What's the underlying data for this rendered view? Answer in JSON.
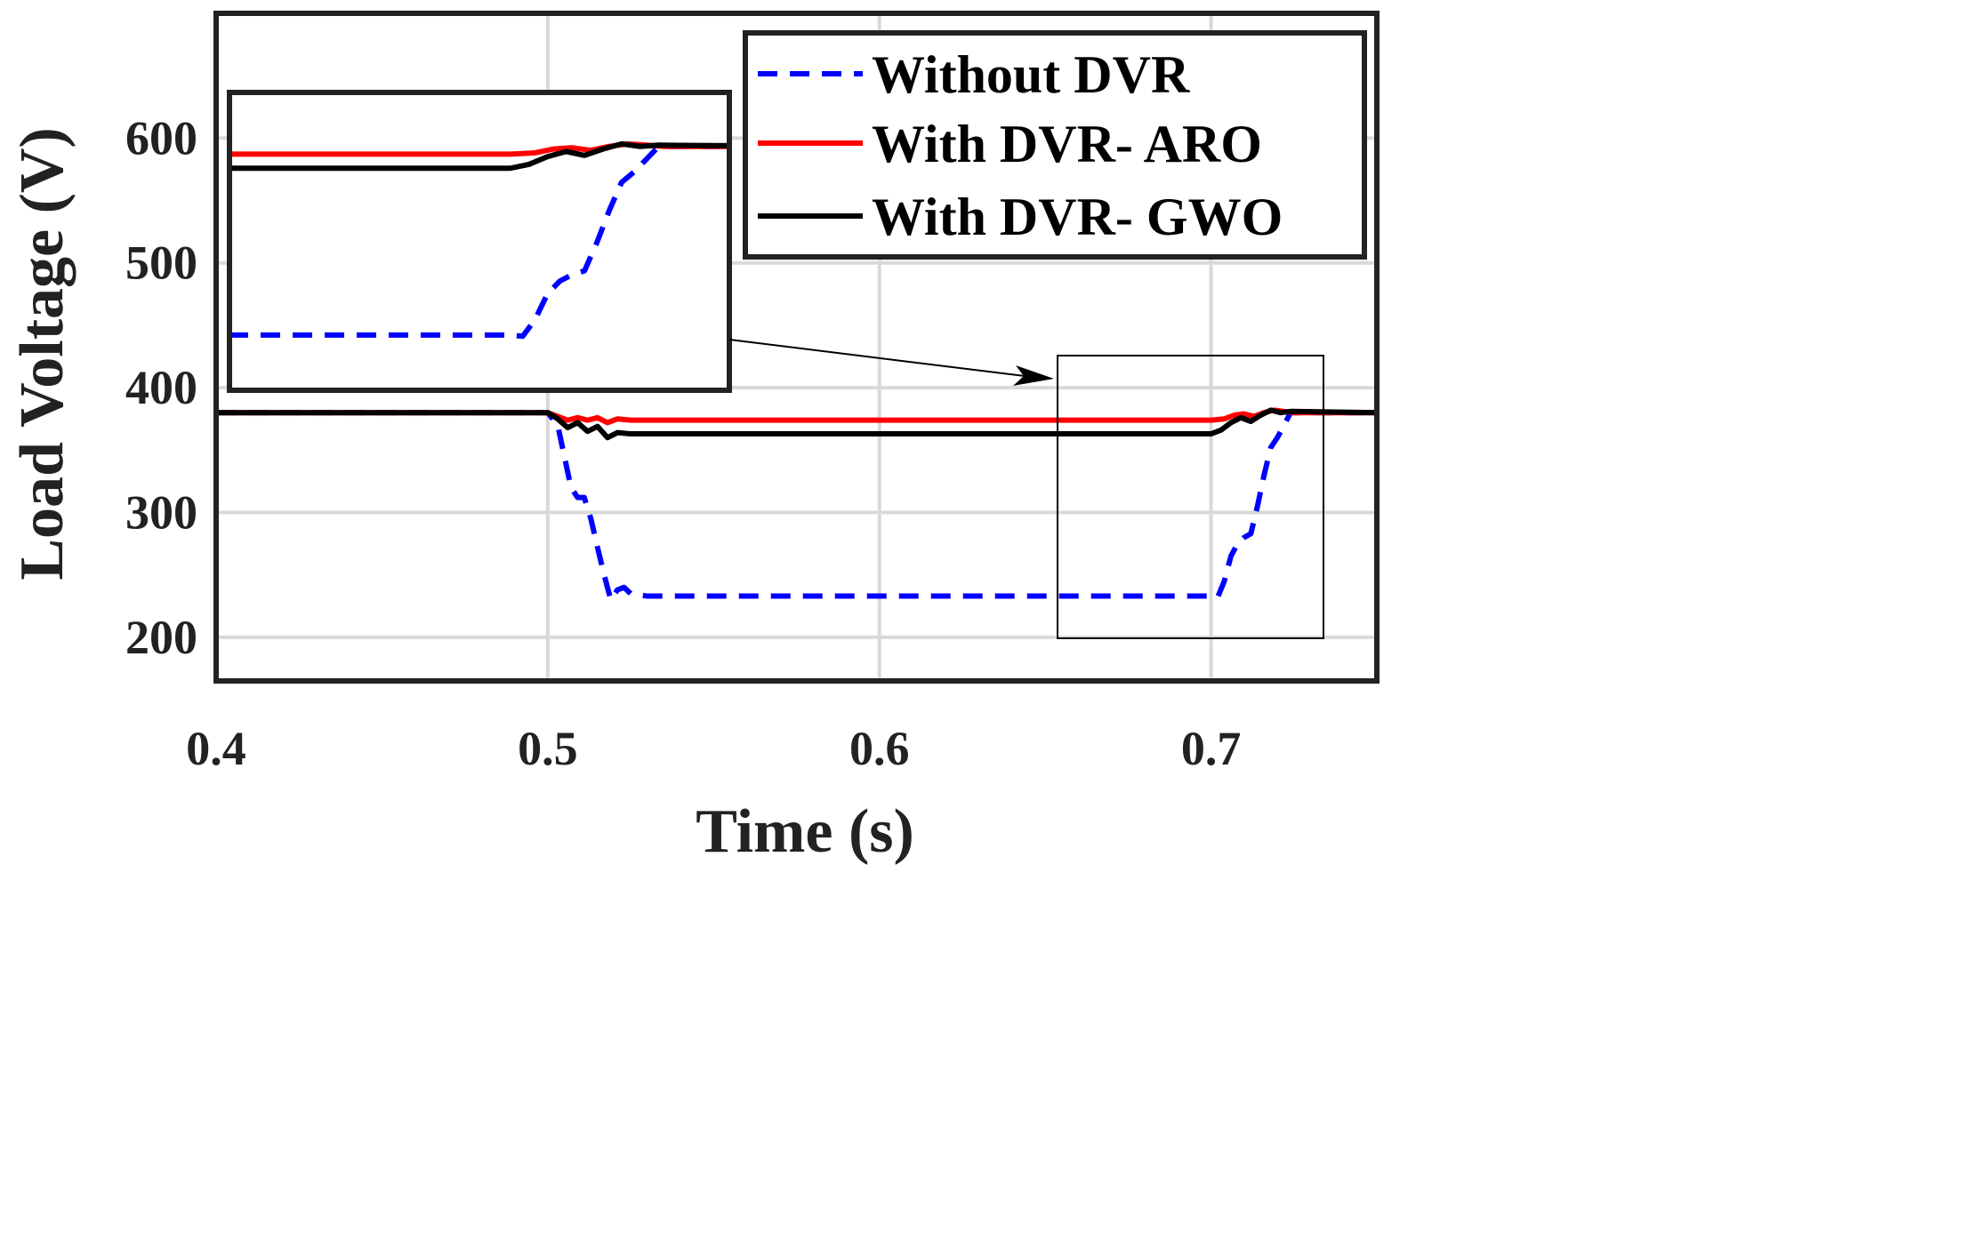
{
  "chart_data": {
    "type": "line",
    "xlabel": "Time (s)",
    "ylabel": "Load Voltage (V)",
    "xlim": [
      0.4,
      0.75
    ],
    "ylim": [
      165,
      700
    ],
    "xticks": [
      0.4,
      0.5,
      0.6,
      0.7
    ],
    "xtick_labels": [
      "0.4",
      "0.5",
      "0.6",
      "0.7"
    ],
    "yticks": [
      200,
      300,
      400,
      500,
      600
    ],
    "ytick_labels": [
      "200",
      "300",
      "400",
      "500",
      "600"
    ],
    "grid": true,
    "legend_position": "top-right",
    "series": [
      {
        "name": "Without DVR",
        "color": "#0000ff",
        "style": "dashed",
        "x": [
          0.4,
          0.5,
          0.503,
          0.505,
          0.507,
          0.509,
          0.511,
          0.513,
          0.515,
          0.517,
          0.519,
          0.521,
          0.523,
          0.525,
          0.53,
          0.6,
          0.7,
          0.702,
          0.704,
          0.706,
          0.708,
          0.71,
          0.712,
          0.714,
          0.716,
          0.718,
          0.72,
          0.722,
          0.724,
          0.75
        ],
        "y": [
          380,
          380,
          370,
          345,
          320,
          312,
          312,
          295,
          272,
          250,
          230,
          238,
          240,
          235,
          233,
          233,
          233,
          232,
          245,
          265,
          275,
          280,
          283,
          305,
          330,
          352,
          360,
          370,
          380,
          380
        ]
      },
      {
        "name": "With DVR- ARO",
        "color": "#ff0000",
        "style": "solid",
        "x": [
          0.4,
          0.5,
          0.503,
          0.506,
          0.509,
          0.512,
          0.515,
          0.518,
          0.521,
          0.525,
          0.6,
          0.7,
          0.704,
          0.707,
          0.71,
          0.713,
          0.716,
          0.719,
          0.722,
          0.725,
          0.75
        ],
        "y": [
          380,
          380,
          377,
          374,
          376,
          374,
          376,
          372,
          375,
          374,
          374,
          374,
          375,
          378,
          379,
          377,
          380,
          382,
          381,
          380,
          380
        ]
      },
      {
        "name": "With DVR- GWO",
        "color": "#000000",
        "style": "solid",
        "x": [
          0.4,
          0.5,
          0.503,
          0.506,
          0.509,
          0.512,
          0.515,
          0.518,
          0.521,
          0.525,
          0.6,
          0.7,
          0.703,
          0.706,
          0.709,
          0.712,
          0.715,
          0.718,
          0.721,
          0.724,
          0.75
        ],
        "y": [
          380,
          380,
          375,
          368,
          372,
          365,
          369,
          360,
          364,
          363,
          363,
          363,
          366,
          372,
          376,
          373,
          378,
          382,
          380,
          381,
          380
        ]
      }
    ],
    "inset": {
      "zoom_xlim": [
        0.655,
        0.735
      ],
      "zoom_ylim": [
        192,
        420
      ]
    }
  }
}
